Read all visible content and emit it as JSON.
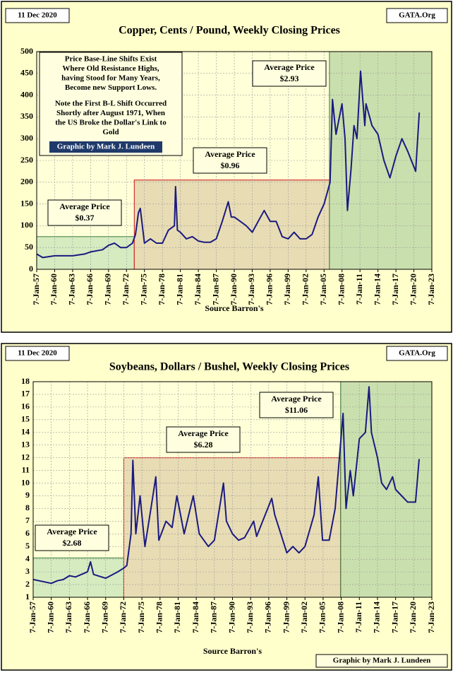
{
  "chart_data": [
    {
      "type": "line",
      "date": "11 Dec 2020",
      "site": "GATA.Org",
      "title": "Copper, Cents / Pound, Weekly Closing Prices",
      "xlabel": "Source Barron's",
      "note": [
        "Price Base-Line Shifts Exist",
        "Where Old Resistance Highs,",
        "having Stood for Many Years,",
        "Become new Support Lows.",
        "Note the First B-L Shift Occurred",
        "Shortly after August 1971, When",
        "the US Broke the Dollar's Link to",
        "Gold"
      ],
      "credit": "Graphic by Mark J. Lundeen",
      "color": "#1a1a80",
      "x": [
        1957,
        1958,
        1960,
        1963,
        1965,
        1966,
        1968,
        1969,
        1970,
        1971,
        1972,
        1973,
        1973.5,
        1974,
        1974.3,
        1975,
        1976,
        1977,
        1978,
        1979,
        1980,
        1980.2,
        1980.5,
        1981,
        1982,
        1983,
        1984,
        1985,
        1986,
        1987,
        1988,
        1989,
        1989.5,
        1990,
        1991,
        1992,
        1993,
        1994,
        1995,
        1996,
        1997,
        1998,
        1999,
        2000,
        2001,
        2002,
        2003,
        2004,
        2005,
        2006,
        2006.4,
        2007,
        2008,
        2008.5,
        2008.9,
        2009.5,
        2010,
        2010.5,
        2011.1,
        2011.8,
        2012,
        2013,
        2014,
        2015,
        2016,
        2017,
        2018,
        2019,
        2020.3,
        2020.9
      ],
      "values": [
        35,
        27,
        31,
        31,
        35,
        40,
        45,
        55,
        60,
        50,
        50,
        60,
        80,
        130,
        140,
        60,
        70,
        60,
        60,
        90,
        100,
        190,
        90,
        85,
        70,
        75,
        65,
        62,
        62,
        70,
        110,
        155,
        120,
        120,
        110,
        100,
        85,
        110,
        135,
        110,
        110,
        75,
        70,
        85,
        70,
        70,
        80,
        120,
        150,
        200,
        390,
        310,
        380,
        300,
        135,
        230,
        330,
        300,
        455,
        330,
        380,
        330,
        310,
        250,
        210,
        260,
        300,
        270,
        225,
        360
      ],
      "regions": [
        {
          "x": [
            1957,
            1973.3
          ],
          "top": 75,
          "color": "#d6ebc0",
          "border": "#3a7a3a",
          "label": [
            "Average Price",
            "$0.37"
          ]
        },
        {
          "x": [
            1973.3,
            2005.9
          ],
          "top": 205,
          "color": "#e8dcb4",
          "border": "#d01010",
          "label": [
            "Average Price",
            "$0.96"
          ]
        },
        {
          "x": [
            2005.9,
            2023
          ],
          "top": 500,
          "color": "#cadfae",
          "border": "#3a7a3a",
          "label": [
            "Average Price",
            "$2.93"
          ]
        }
      ],
      "xlim": [
        1957,
        2023
      ],
      "xticks": [
        {
          "value": 1957,
          "label": "7-Jan-57"
        },
        {
          "value": 1960,
          "label": "7-Jan-60"
        },
        {
          "value": 1963,
          "label": "7-Jan-63"
        },
        {
          "value": 1966,
          "label": "7-Jan-66"
        },
        {
          "value": 1969,
          "label": "7-Jan-69"
        },
        {
          "value": 1972,
          "label": "7-Jan-72"
        },
        {
          "value": 1975,
          "label": "7-Jan-75"
        },
        {
          "value": 1978,
          "label": "7-Jan-78"
        },
        {
          "value": 1981,
          "label": "7-Jan-81"
        },
        {
          "value": 1984,
          "label": "7-Jan-84"
        },
        {
          "value": 1987,
          "label": "7-Jan-87"
        },
        {
          "value": 1990,
          "label": "7-Jan-90"
        },
        {
          "value": 1993,
          "label": "7-Jan-93"
        },
        {
          "value": 1996,
          "label": "7-Jan-96"
        },
        {
          "value": 1999,
          "label": "7-Jan-99"
        },
        {
          "value": 2002,
          "label": "7-Jan-02"
        },
        {
          "value": 2005,
          "label": "7-Jan-05"
        },
        {
          "value": 2008,
          "label": "7-Jan-08"
        },
        {
          "value": 2011,
          "label": "7-Jan-11"
        },
        {
          "value": 2014,
          "label": "7-Jan-14"
        },
        {
          "value": 2017,
          "label": "7-Jan-17"
        },
        {
          "value": 2020,
          "label": "7-Jan-20"
        },
        {
          "value": 2023,
          "label": "7-Jan-23"
        }
      ],
      "ylim": [
        0,
        500
      ],
      "yticks": [
        0,
        50,
        100,
        150,
        200,
        250,
        300,
        350,
        400,
        450,
        500
      ],
      "grid": true
    },
    {
      "type": "line",
      "date": "11 Dec 2020",
      "site": "GATA.Org",
      "title": "Soybeans, Dollars / Bushel, Weekly Closing Prices",
      "xlabel": "Source Barron's",
      "credit": "Graphic by Mark J. Lundeen",
      "color": "#1a1a80",
      "x": [
        1957,
        1960,
        1961,
        1962,
        1963,
        1964,
        1966,
        1966.5,
        1967,
        1969,
        1971,
        1972,
        1972.5,
        1973.2,
        1973.5,
        1974,
        1974.7,
        1975.5,
        1976.5,
        1977.3,
        1977.8,
        1979,
        1980,
        1980.8,
        1982,
        1983.5,
        1984.5,
        1986,
        1987,
        1988.5,
        1989,
        1990,
        1991,
        1992,
        1993.5,
        1994,
        1996.5,
        1997,
        1998,
        1999,
        2000,
        2001,
        2002,
        2003.5,
        2004.2,
        2004.9,
        2006,
        2007,
        2008.3,
        2008.8,
        2009.5,
        2010,
        2011,
        2012,
        2012.6,
        2013,
        2014,
        2014.7,
        2015.5,
        2016.5,
        2017,
        2018,
        2019,
        2020.3,
        2020.9
      ],
      "values": [
        2.4,
        2.1,
        2.3,
        2.4,
        2.7,
        2.6,
        3.0,
        3.8,
        2.8,
        2.5,
        3.0,
        3.3,
        3.5,
        6,
        11.8,
        6,
        9,
        5,
        8,
        10.5,
        5.5,
        7,
        6.5,
        9,
        6,
        9,
        6,
        5,
        5.5,
        10,
        7,
        6,
        5.5,
        5.7,
        7,
        5.8,
        8.8,
        7.5,
        6,
        4.5,
        5,
        4.5,
        5,
        7.5,
        10.5,
        5.5,
        5.5,
        8,
        15.5,
        8,
        11,
        9,
        13.5,
        14,
        17.6,
        14,
        12,
        10,
        9.5,
        10.5,
        9.5,
        9,
        8.5,
        8.5,
        11.9
      ],
      "regions": [
        {
          "x": [
            1957,
            1972
          ],
          "top": 4.1,
          "color": "#d6ebc0",
          "border": "#3a7a3a",
          "label": [
            "Average Price",
            "$2.68"
          ]
        },
        {
          "x": [
            1972,
            2007.9
          ],
          "top": 12,
          "color": "#e8dcb4",
          "border": "#d01010",
          "label": [
            "Average Price",
            "$6.28"
          ]
        },
        {
          "x": [
            2007.9,
            2023
          ],
          "top": 18,
          "color": "#cadfae",
          "border": "#3a7a3a",
          "label": [
            "Average Price",
            "$11.06"
          ]
        }
      ],
      "xlim": [
        1957,
        2023
      ],
      "xticks": [
        {
          "value": 1957,
          "label": "7-Jan-57"
        },
        {
          "value": 1960,
          "label": "7-Jan-60"
        },
        {
          "value": 1963,
          "label": "7-Jan-63"
        },
        {
          "value": 1966,
          "label": "7-Jan-66"
        },
        {
          "value": 1969,
          "label": "7-Jan-69"
        },
        {
          "value": 1972,
          "label": "7-Jan-72"
        },
        {
          "value": 1975,
          "label": "7-Jan-75"
        },
        {
          "value": 1978,
          "label": "7-Jan-78"
        },
        {
          "value": 1981,
          "label": "7-Jan-81"
        },
        {
          "value": 1984,
          "label": "7-Jan-84"
        },
        {
          "value": 1987,
          "label": "7-Jan-87"
        },
        {
          "value": 1990,
          "label": "7-Jan-90"
        },
        {
          "value": 1993,
          "label": "7-Jan-93"
        },
        {
          "value": 1996,
          "label": "7-Jan-96"
        },
        {
          "value": 1999,
          "label": "7-Jan-99"
        },
        {
          "value": 2002,
          "label": "7-Jan-02"
        },
        {
          "value": 2005,
          "label": "7-Jan-05"
        },
        {
          "value": 2008,
          "label": "7-Jan-08"
        },
        {
          "value": 2011,
          "label": "7-Jan-11"
        },
        {
          "value": 2014,
          "label": "7-Jan-14"
        },
        {
          "value": 2017,
          "label": "7-Jan-17"
        },
        {
          "value": 2020,
          "label": "7-Jan-20"
        },
        {
          "value": 2023,
          "label": "7-Jan-23"
        }
      ],
      "ylim": [
        1,
        18
      ],
      "yticks": [
        1,
        2,
        3,
        4,
        5,
        6,
        7,
        8,
        9,
        10,
        11,
        12,
        13,
        14,
        15,
        16,
        17,
        18
      ],
      "grid": true
    }
  ]
}
